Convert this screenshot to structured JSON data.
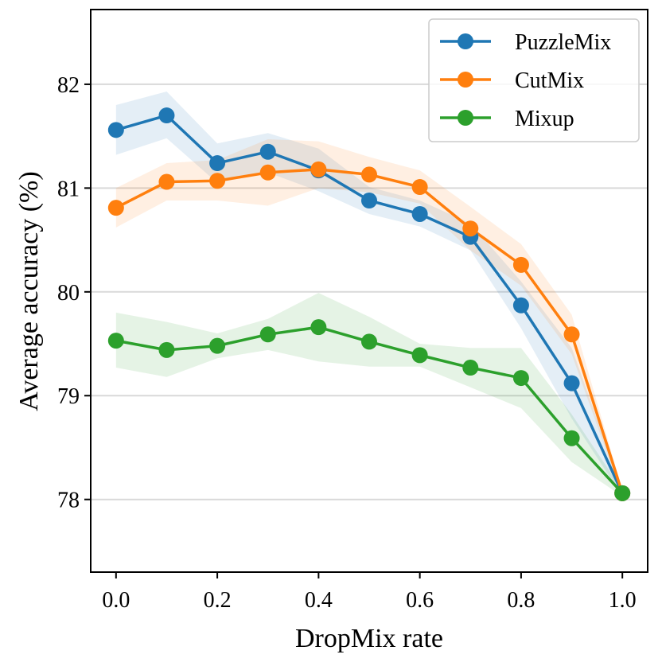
{
  "chart_data": {
    "type": "line",
    "xlabel": "DropMix rate",
    "ylabel": "Average accuracy (%)",
    "xlim": [
      -0.05,
      1.05
    ],
    "ylim": [
      77.3,
      82.72
    ],
    "x": [
      0.0,
      0.1,
      0.2,
      0.3,
      0.4,
      0.5,
      0.6,
      0.7,
      0.8,
      0.9,
      1.0
    ],
    "x_ticks": [
      0.0,
      0.2,
      0.4,
      0.6,
      0.8,
      1.0
    ],
    "x_tick_labels": [
      "0.0",
      "0.2",
      "0.4",
      "0.6",
      "0.8",
      "1.0"
    ],
    "y_ticks": [
      78,
      79,
      80,
      81,
      82
    ],
    "y_tick_labels": [
      "78",
      "79",
      "80",
      "81",
      "82"
    ],
    "grid": "horizontal",
    "legend_position": "top-right",
    "series": [
      {
        "name": "PuzzleMix",
        "color": "#1f77b4",
        "values": [
          81.56,
          81.7,
          81.24,
          81.35,
          81.17,
          80.88,
          80.75,
          80.53,
          79.87,
          79.12,
          78.06
        ],
        "band_low": [
          81.32,
          81.48,
          81.05,
          81.15,
          80.97,
          80.75,
          80.63,
          80.4,
          79.65,
          78.78,
          78.03
        ],
        "band_high": [
          81.8,
          81.93,
          81.43,
          81.53,
          81.38,
          81.01,
          80.88,
          80.66,
          80.1,
          79.46,
          78.09
        ]
      },
      {
        "name": "CutMix",
        "color": "#ff7f0e",
        "values": [
          80.81,
          81.06,
          81.07,
          81.15,
          81.18,
          81.13,
          81.01,
          80.61,
          80.26,
          79.59,
          78.06
        ],
        "band_low": [
          80.62,
          80.88,
          80.88,
          80.83,
          81.0,
          80.96,
          80.85,
          80.4,
          80.06,
          79.4,
          78.03
        ],
        "band_high": [
          81.0,
          81.24,
          81.27,
          81.47,
          81.45,
          81.3,
          81.17,
          80.82,
          80.46,
          79.78,
          78.09
        ]
      },
      {
        "name": "Mixup",
        "color": "#2ca02c",
        "values": [
          79.53,
          79.44,
          79.48,
          79.59,
          79.66,
          79.52,
          79.39,
          79.27,
          79.17,
          78.59,
          78.06
        ],
        "band_low": [
          79.27,
          79.18,
          79.36,
          79.44,
          79.33,
          79.28,
          79.28,
          79.08,
          78.88,
          78.36,
          78.03
        ],
        "band_high": [
          79.8,
          79.71,
          79.6,
          79.74,
          79.99,
          79.76,
          79.5,
          79.46,
          79.46,
          78.82,
          78.09
        ]
      }
    ]
  }
}
